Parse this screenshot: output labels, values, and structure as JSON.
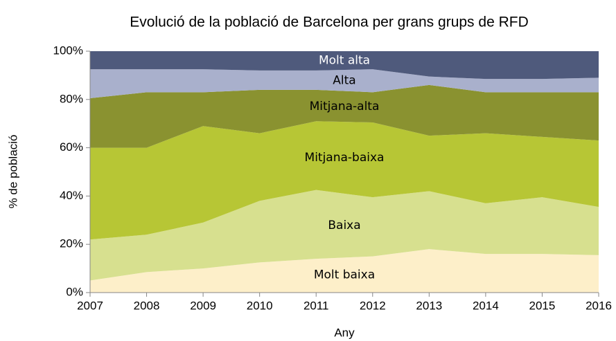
{
  "chart_data": {
    "type": "stacked-area",
    "title": "Evolució de la població de Barcelona per grans grups de RFD",
    "x_label": "Any",
    "y_label": "% de població",
    "x": [
      2007,
      2008,
      2009,
      2010,
      2011,
      2012,
      2013,
      2014,
      2015,
      2016
    ],
    "xlim": [
      2007,
      2016
    ],
    "xticks": [
      2007,
      2008,
      2009,
      2010,
      2011,
      2012,
      2013,
      2014,
      2015,
      2016
    ],
    "ylim": [
      0,
      100
    ],
    "yticks": [
      {
        "value": 0,
        "label": "0%"
      },
      {
        "value": 20,
        "label": "20%"
      },
      {
        "value": 40,
        "label": "40%"
      },
      {
        "value": 60,
        "label": "60%"
      },
      {
        "value": 80,
        "label": "80%"
      },
      {
        "value": 100,
        "label": "100%"
      }
    ],
    "series": [
      {
        "name": "Molt baixa",
        "color": "#fdefc9",
        "label_color": "#000000",
        "values": [
          5,
          8.5,
          10,
          12.5,
          14,
          15,
          18,
          16,
          16,
          15.5
        ]
      },
      {
        "name": "Baixa",
        "color": "#d7e08f",
        "label_color": "#000000",
        "values": [
          17,
          15.5,
          19,
          25.5,
          28.5,
          24.5,
          24,
          21,
          23.5,
          20
        ]
      },
      {
        "name": "Mitjana-baixa",
        "color": "#b7c635",
        "label_color": "#000000",
        "values": [
          38,
          36,
          40,
          28,
          28.5,
          31,
          23,
          29,
          25,
          27.5
        ]
      },
      {
        "name": "Mitjana-alta",
        "color": "#8a9230",
        "label_color": "#000000",
        "values": [
          20.5,
          23,
          14,
          18,
          13,
          12.5,
          21,
          17,
          18.5,
          20
        ]
      },
      {
        "name": "Alta",
        "color": "#a9b0cc",
        "label_color": "#000000",
        "values": [
          12,
          9.5,
          9.5,
          8,
          8,
          9.5,
          3.5,
          5.5,
          5.5,
          6
        ]
      },
      {
        "name": "Molt alta",
        "color": "#4f5a7c",
        "label_color": "#ffffff",
        "values": [
          7.5,
          7.5,
          7.5,
          8,
          8,
          7.5,
          10.5,
          11.5,
          11.5,
          11
        ]
      }
    ]
  }
}
